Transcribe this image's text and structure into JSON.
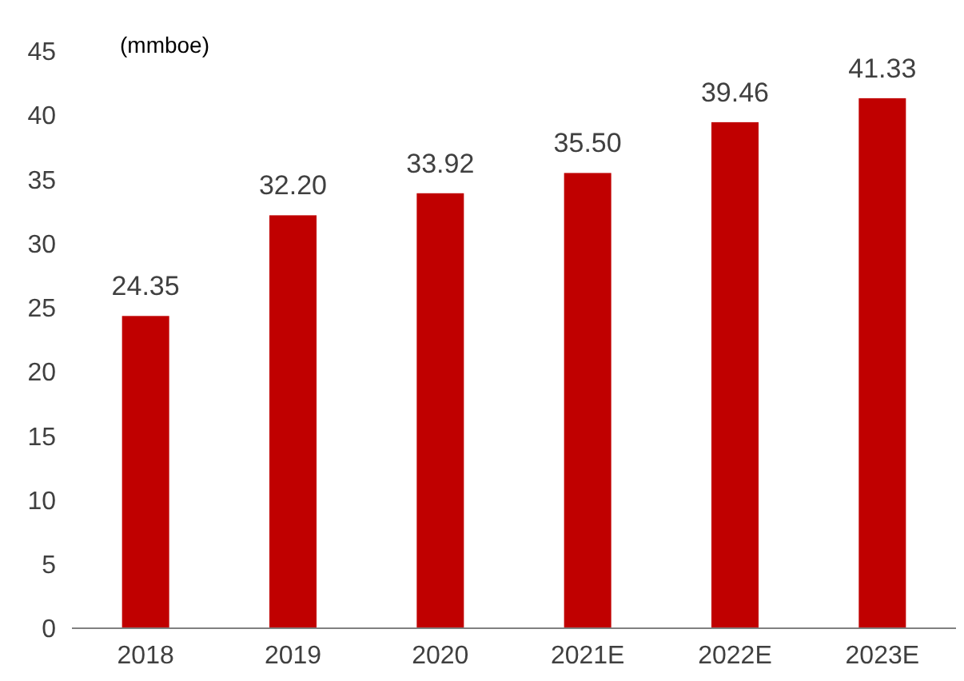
{
  "chart_data": {
    "type": "bar",
    "ylabel": "(mmboe)",
    "categories": [
      "2018",
      "2019",
      "2020",
      "2021E",
      "2022E",
      "2023E"
    ],
    "values": [
      24.35,
      32.2,
      33.92,
      35.5,
      39.46,
      41.33
    ],
    "value_labels": [
      "24.35",
      "32.20",
      "33.92",
      "35.50",
      "39.46",
      "41.33"
    ],
    "color": "#c00000",
    "ylim": [
      0,
      45
    ],
    "yticks": [
      0,
      5,
      10,
      15,
      20,
      25,
      30,
      35,
      40,
      45
    ],
    "grid": false
  }
}
